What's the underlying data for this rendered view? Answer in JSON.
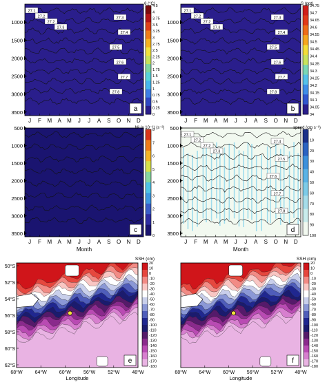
{
  "chart_data": [
    {
      "panel": "a",
      "type": "heatmap",
      "colorbar_label": "θ (°C)",
      "colorbar_ticks": [
        "0",
        "0.25",
        "0.5",
        "0.75",
        "1",
        "1.25",
        "1.5",
        "1.75",
        "2",
        "2.25",
        "2.5",
        "2.75",
        "3",
        "3.25",
        "3.5",
        "3.75",
        "4",
        "4.5"
      ],
      "x_tick_labels": [
        "J",
        "F",
        "M",
        "A",
        "M",
        "J",
        "J",
        "A",
        "S",
        "O",
        "N",
        "D"
      ],
      "y_tick_labels": [
        "1000",
        "1500",
        "2000",
        "2500",
        "3000",
        "3500"
      ],
      "y_range": [
        500,
        3600
      ],
      "isopycnal_labels": [
        "27.1",
        "27.2",
        "27.2",
        "27.3",
        "27.3",
        "27.4",
        "27.5",
        "27.6",
        "27.7",
        "27.8"
      ]
    },
    {
      "panel": "b",
      "type": "heatmap",
      "colorbar_label": "S (ppt)",
      "colorbar_ticks": [
        "34",
        "34.05",
        "34.1",
        "34.15",
        "34.2",
        "34.25",
        "34.3",
        "34.35",
        "34.4",
        "34.45",
        "34.5",
        "34.55",
        "34.6",
        "34.65",
        "34.7",
        "34.75"
      ],
      "x_tick_labels": [
        "J",
        "F",
        "M",
        "A",
        "M",
        "J",
        "J",
        "A",
        "S",
        "O",
        "N",
        "D"
      ],
      "y_tick_labels": [
        "1000",
        "1500",
        "2000",
        "2500",
        "3000",
        "3500"
      ],
      "y_range": [
        500,
        3600
      ],
      "isopycnal_labels": [
        "27.1",
        "27.2",
        "27.2",
        "27.3",
        "27.3",
        "27.4",
        "27.5",
        "27.6",
        "27.7",
        "27.8"
      ]
    },
    {
      "panel": "c",
      "type": "heatmap",
      "colorbar_label": "N² (x 10⁻⁶) (s⁻²)",
      "colorbar_ticks": [
        "0",
        "1",
        "2",
        "3",
        "4",
        "5",
        "6",
        "7",
        "8"
      ],
      "x_tick_labels": [
        "J",
        "F",
        "M",
        "A",
        "M",
        "J",
        "J",
        "A",
        "S",
        "O",
        "N",
        "D"
      ],
      "xlabel": "Month",
      "y_tick_labels": [
        "500",
        "1000",
        "1500",
        "2000",
        "2500",
        "3000",
        "3500"
      ],
      "y_range": [
        500,
        3600
      ]
    },
    {
      "panel": "d",
      "type": "heatmap",
      "colorbar_label": "speed (cm s⁻¹)",
      "colorbar_ticks": [
        "0",
        "10",
        "20",
        "30",
        "40",
        "50",
        "60",
        "70",
        "80",
        "90",
        "100"
      ],
      "x_tick_labels": [
        "J",
        "F",
        "M",
        "A",
        "M",
        "J",
        "J",
        "A",
        "S",
        "O",
        "N",
        "D"
      ],
      "xlabel": "Month",
      "y_tick_labels": [
        "500",
        "1000",
        "1500",
        "2000",
        "2500",
        "3000",
        "3500"
      ],
      "y_range": [
        500,
        3600
      ],
      "isopycnal_labels": [
        "27.1",
        "27.2",
        "27.2",
        "27.3",
        "27.4",
        "27.5",
        "27.6",
        "27.7",
        "27.8"
      ]
    },
    {
      "panel": "e",
      "type": "heatmap",
      "colorbar_label": "SSH (cm)",
      "colorbar_ticks": [
        "20",
        "10",
        "0",
        "-10",
        "-20",
        "-30",
        "-40",
        "-50",
        "-60",
        "-70",
        "-80",
        "-90",
        "-100",
        "-110",
        "-120",
        "-130",
        "-140",
        "-150",
        "-160",
        "-170",
        "-180"
      ],
      "x_tick_labels": [
        "68°W",
        "64°W",
        "60°W",
        "56°W",
        "52°W",
        "48°W"
      ],
      "xlabel": "Longitude",
      "y_tick_labels": [
        "50°S",
        "52°S",
        "54°S",
        "56°S",
        "58°S",
        "60°S",
        "62°S"
      ]
    },
    {
      "panel": "f",
      "type": "heatmap",
      "colorbar_label": "SSH (cm)",
      "colorbar_ticks": [
        "20",
        "10",
        "0",
        "-10",
        "-20",
        "-30",
        "-40",
        "-50",
        "-60",
        "-70",
        "-80",
        "-90",
        "-100",
        "-110",
        "-120",
        "-130",
        "-140",
        "-150",
        "-160",
        "-170",
        "-180"
      ],
      "x_tick_labels": [
        "68°W",
        "64°W",
        "60°W",
        "56°W",
        "52°W",
        "48°W"
      ],
      "xlabel": "Longitude",
      "y_tick_labels": []
    }
  ],
  "colors": {
    "theta": [
      "#2a1e8c",
      "#2f48c4",
      "#3d7fe6",
      "#47b7ee",
      "#58d4d9",
      "#7ed7a0",
      "#c7e35a",
      "#f2e23c",
      "#f6b21f",
      "#f07d17",
      "#e0401a",
      "#b51616",
      "#7a0c0c"
    ],
    "salinity": [
      "#2a1e8c",
      "#3157cf",
      "#3f8ee8",
      "#55c2ea",
      "#7ad8b7",
      "#c9e45d",
      "#f4de38",
      "#f6a71f",
      "#ef6d19",
      "#e23a1a",
      "#d11f1a"
    ],
    "n2": [
      "#1a1470",
      "#2f2ea3",
      "#3a5ec9",
      "#3f99e2",
      "#4fc3e6",
      "#86d79f",
      "#d7e04a",
      "#f6b526",
      "#ef7b19",
      "#d9361a"
    ],
    "speed": [
      "#1a2f8a",
      "#2c63c2",
      "#3d91dc",
      "#5ab3e6",
      "#7dcbe8",
      "#a6ddea",
      "#c9ecec",
      "#f2f9f0"
    ],
    "ssh": [
      "#d0151a",
      "#e6473e",
      "#f28b85",
      "#f9c6c3",
      "#ffffff",
      "#c9cfeb",
      "#8b98d6",
      "#4f5dba",
      "#20278f",
      "#1b1b6e",
      "#551a6a",
      "#8a2a8c",
      "#b94bb3",
      "#d77fcf",
      "#e9b3e3"
    ]
  }
}
